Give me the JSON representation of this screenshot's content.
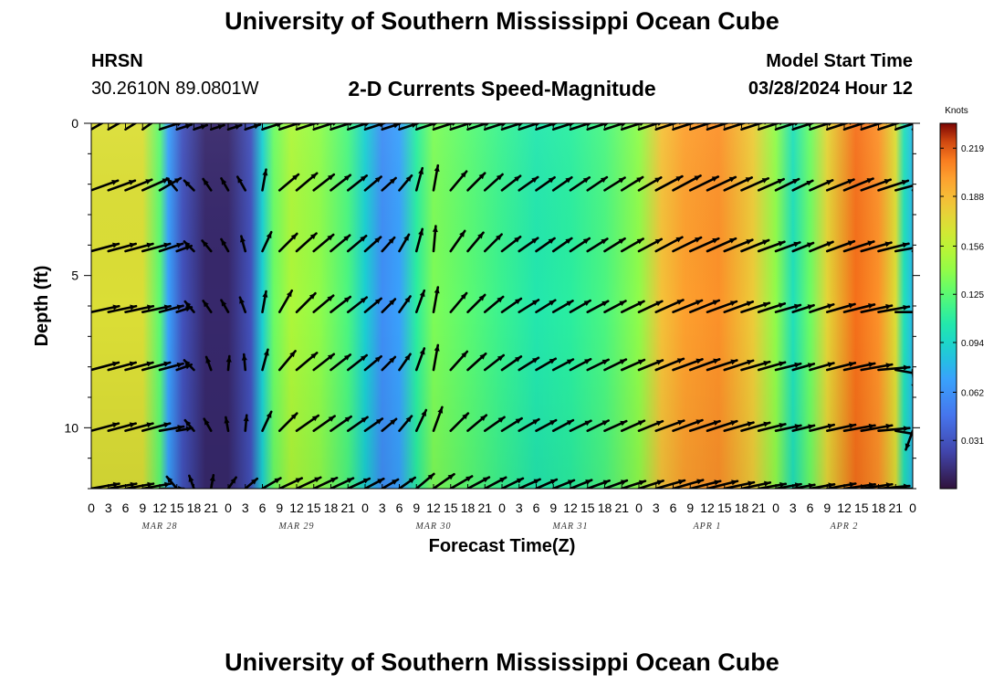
{
  "header": {
    "title": "University of Southern Mississippi Ocean Cube",
    "station": "HRSN",
    "coords": "30.2610N  89.0801W",
    "subtitle": "2-D Currents Speed-Magnitude",
    "model_start_label": "Model Start Time",
    "model_start_value": "03/28/2024 Hour 12"
  },
  "footer": {
    "title": "University of Southern Mississippi Ocean Cube"
  },
  "colors": {
    "arrow": "#000000",
    "background": "#ffffff"
  },
  "chart_data": {
    "type": "heatmap",
    "title": "2-D Currents Speed-Magnitude",
    "xlabel": "Forecast Time(Z)",
    "ylabel": "Depth (ft)",
    "xlim_hours": [
      0,
      144
    ],
    "ylim_ft": [
      0,
      12
    ],
    "x_tick_labels": [
      "0",
      "3",
      "6",
      "9",
      "12",
      "15",
      "18",
      "21",
      "0",
      "3",
      "6",
      "9",
      "12",
      "15",
      "18",
      "21",
      "0",
      "3",
      "6",
      "9",
      "12",
      "15",
      "18",
      "21",
      "0",
      "3",
      "6",
      "9",
      "12",
      "15",
      "18",
      "21",
      "0",
      "3",
      "6",
      "9",
      "12",
      "15",
      "18",
      "21",
      "0",
      "3",
      "6",
      "9",
      "12",
      "15",
      "18",
      "21",
      "0"
    ],
    "day_labels": [
      {
        "label": "MAR 28",
        "hour": 12
      },
      {
        "label": "MAR 29",
        "hour": 36
      },
      {
        "label": "MAR 30",
        "hour": 60
      },
      {
        "label": "MAR 31",
        "hour": 84
      },
      {
        "label": "APR 1",
        "hour": 108
      },
      {
        "label": "APR 2",
        "hour": 132
      }
    ],
    "y_ticks": [
      {
        "label": "0",
        "value": 0
      },
      {
        "label": "5",
        "value": 5
      },
      {
        "label": "10",
        "value": 10
      }
    ],
    "colorbar": {
      "units": "Knots",
      "min": 0.0,
      "max": 0.235,
      "ticks": [
        "0.031",
        "0.062",
        "0.094",
        "0.125",
        "0.156",
        "0.188",
        "0.219"
      ],
      "tick_values": [
        0.031,
        0.062,
        0.094,
        0.125,
        0.156,
        0.188,
        0.219
      ]
    },
    "speed_profile_knots": [
      {
        "hour": 0,
        "speed": 0.17
      },
      {
        "hour": 9,
        "speed": 0.17
      },
      {
        "hour": 12,
        "speed": 0.125
      },
      {
        "hour": 13.5,
        "speed": 0.07
      },
      {
        "hour": 16,
        "speed": 0.03
      },
      {
        "hour": 20,
        "speed": 0.01
      },
      {
        "hour": 24,
        "speed": 0.01
      },
      {
        "hour": 28,
        "speed": 0.03
      },
      {
        "hour": 30,
        "speed": 0.09
      },
      {
        "hour": 32,
        "speed": 0.13
      },
      {
        "hour": 35,
        "speed": 0.15
      },
      {
        "hour": 40,
        "speed": 0.14
      },
      {
        "hour": 45,
        "speed": 0.12
      },
      {
        "hour": 48,
        "speed": 0.09
      },
      {
        "hour": 51,
        "speed": 0.06
      },
      {
        "hour": 54,
        "speed": 0.07
      },
      {
        "hour": 57,
        "speed": 0.11
      },
      {
        "hour": 60,
        "speed": 0.135
      },
      {
        "hour": 66,
        "speed": 0.125
      },
      {
        "hour": 72,
        "speed": 0.115
      },
      {
        "hour": 78,
        "speed": 0.105
      },
      {
        "hour": 84,
        "speed": 0.11
      },
      {
        "hour": 90,
        "speed": 0.12
      },
      {
        "hour": 96,
        "speed": 0.14
      },
      {
        "hour": 100,
        "speed": 0.185
      },
      {
        "hour": 104,
        "speed": 0.2
      },
      {
        "hour": 110,
        "speed": 0.205
      },
      {
        "hour": 116,
        "speed": 0.18
      },
      {
        "hour": 120,
        "speed": 0.14
      },
      {
        "hour": 123,
        "speed": 0.1
      },
      {
        "hour": 126,
        "speed": 0.13
      },
      {
        "hour": 129,
        "speed": 0.175
      },
      {
        "hour": 134,
        "speed": 0.215
      },
      {
        "hour": 138,
        "speed": 0.205
      },
      {
        "hour": 141,
        "speed": 0.17
      },
      {
        "hour": 142.5,
        "speed": 0.1
      },
      {
        "hour": 144,
        "speed": 0.08
      }
    ],
    "vector_hours": [
      0,
      3,
      6,
      9,
      12,
      15,
      18,
      21,
      24,
      27,
      30,
      33,
      36,
      39,
      42,
      45,
      48,
      51,
      54,
      57,
      60,
      63,
      66,
      69,
      72,
      75,
      78,
      81,
      84,
      87,
      90,
      93,
      96,
      99,
      102,
      105,
      108,
      111,
      114,
      117,
      120,
      123,
      126,
      129,
      132,
      135,
      138,
      141,
      144
    ],
    "vector_depths_ft": [
      0.2,
      2.2,
      4.2,
      6.2,
      8.1,
      10.1,
      12.0
    ],
    "vector_direction_deg": [
      [
        60,
        60,
        58,
        55,
        72,
        72,
        72,
        72,
        72,
        72,
        72,
        72,
        72,
        72,
        72,
        72,
        72,
        72,
        72,
        72,
        72,
        72,
        72,
        72,
        72,
        72,
        72,
        72,
        72,
        72,
        72,
        72,
        72,
        72,
        72,
        72,
        72,
        72,
        72,
        72,
        72,
        72,
        72,
        72,
        72,
        72,
        72,
        72,
        72
      ],
      [
        70,
        70,
        68,
        66,
        60,
        -40,
        -45,
        -35,
        -30,
        -30,
        10,
        50,
        50,
        52,
        52,
        52,
        50,
        48,
        40,
        15,
        10,
        40,
        45,
        48,
        52,
        55,
        55,
        55,
        56,
        56,
        58,
        58,
        60,
        62,
        62,
        64,
        65,
        65,
        66,
        66,
        64,
        64,
        66,
        68,
        68,
        70,
        72,
        75,
        80
      ],
      [
        75,
        75,
        75,
        75,
        72,
        70,
        -45,
        -40,
        -30,
        -15,
        25,
        45,
        48,
        50,
        50,
        50,
        48,
        42,
        30,
        15,
        5,
        35,
        40,
        45,
        52,
        55,
        55,
        55,
        56,
        58,
        58,
        60,
        62,
        62,
        64,
        66,
        66,
        68,
        68,
        70,
        70,
        68,
        68,
        70,
        72,
        74,
        76,
        80,
        90
      ],
      [
        78,
        78,
        78,
        78,
        75,
        72,
        -40,
        -35,
        -30,
        -20,
        10,
        30,
        45,
        50,
        52,
        52,
        50,
        45,
        35,
        20,
        10,
        40,
        45,
        50,
        55,
        58,
        58,
        60,
        60,
        62,
        62,
        64,
        65,
        66,
        68,
        68,
        70,
        70,
        72,
        72,
        74,
        72,
        72,
        74,
        76,
        78,
        80,
        90,
        95
      ],
      [
        75,
        75,
        75,
        75,
        75,
        70,
        -45,
        -20,
        5,
        -5,
        15,
        40,
        50,
        52,
        52,
        52,
        50,
        45,
        35,
        20,
        10,
        42,
        48,
        52,
        55,
        58,
        60,
        62,
        62,
        64,
        64,
        66,
        68,
        68,
        70,
        70,
        72,
        72,
        74,
        74,
        76,
        74,
        74,
        76,
        78,
        80,
        85,
        100,
        175
      ],
      [
        75,
        75,
        75,
        75,
        80,
        80,
        -40,
        -30,
        -10,
        5,
        25,
        45,
        55,
        55,
        55,
        55,
        55,
        50,
        40,
        25,
        20,
        45,
        50,
        55,
        58,
        60,
        62,
        62,
        64,
        64,
        66,
        66,
        68,
        70,
        70,
        72,
        72,
        74,
        74,
        76,
        78,
        76,
        76,
        78,
        80,
        80,
        85,
        100,
        200
      ],
      [
        80,
        80,
        80,
        80,
        90,
        -40,
        -20,
        10,
        35,
        50,
        60,
        65,
        65,
        65,
        65,
        65,
        62,
        60,
        55,
        50,
        55,
        60,
        62,
        62,
        64,
        66,
        66,
        68,
        68,
        70,
        70,
        72,
        72,
        74,
        74,
        76,
        76,
        78,
        78,
        80,
        80,
        80,
        80,
        80,
        82,
        82,
        85,
        90,
        100
      ]
    ],
    "vector_magnitude_knots": [
      0.17,
      0.17,
      0.17,
      0.17,
      0.125,
      0.03,
      0.01,
      0.01,
      0.01,
      0.03,
      0.09,
      0.13,
      0.15,
      0.14,
      0.13,
      0.12,
      0.09,
      0.06,
      0.07,
      0.11,
      0.135,
      0.13,
      0.125,
      0.12,
      0.115,
      0.11,
      0.105,
      0.105,
      0.11,
      0.115,
      0.12,
      0.13,
      0.14,
      0.185,
      0.2,
      0.205,
      0.2,
      0.19,
      0.18,
      0.16,
      0.14,
      0.1,
      0.13,
      0.175,
      0.215,
      0.21,
      0.205,
      0.17,
      0.08
    ]
  }
}
